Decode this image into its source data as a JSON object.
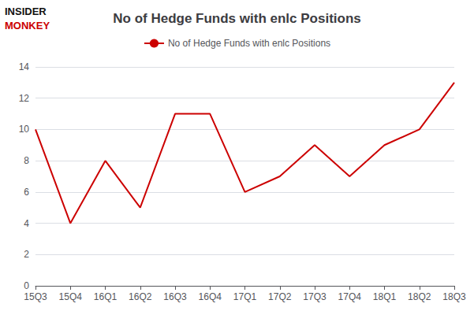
{
  "chart_data": {
    "type": "line",
    "title": "No of Hedge Funds with enlc Positions",
    "categories": [
      "15Q3",
      "15Q4",
      "16Q1",
      "16Q2",
      "16Q3",
      "16Q4",
      "17Q1",
      "17Q2",
      "17Q3",
      "17Q4",
      "18Q1",
      "18Q2",
      "18Q3"
    ],
    "series": [
      {
        "name": "No of Hedge Funds with enlc Positions",
        "color": "#cc0000",
        "values": [
          10,
          4,
          8,
          5,
          11,
          11,
          6,
          7,
          9,
          7,
          9,
          10,
          13
        ]
      }
    ],
    "ylim": [
      0,
      14
    ],
    "yticks": [
      0,
      2,
      4,
      6,
      8,
      10,
      12,
      14
    ],
    "grid": true,
    "legend": "top",
    "annotations": [
      {
        "text": "INSIDER",
        "color": "#111111"
      },
      {
        "text": "MONKEY",
        "color": "#cc0000"
      }
    ]
  }
}
